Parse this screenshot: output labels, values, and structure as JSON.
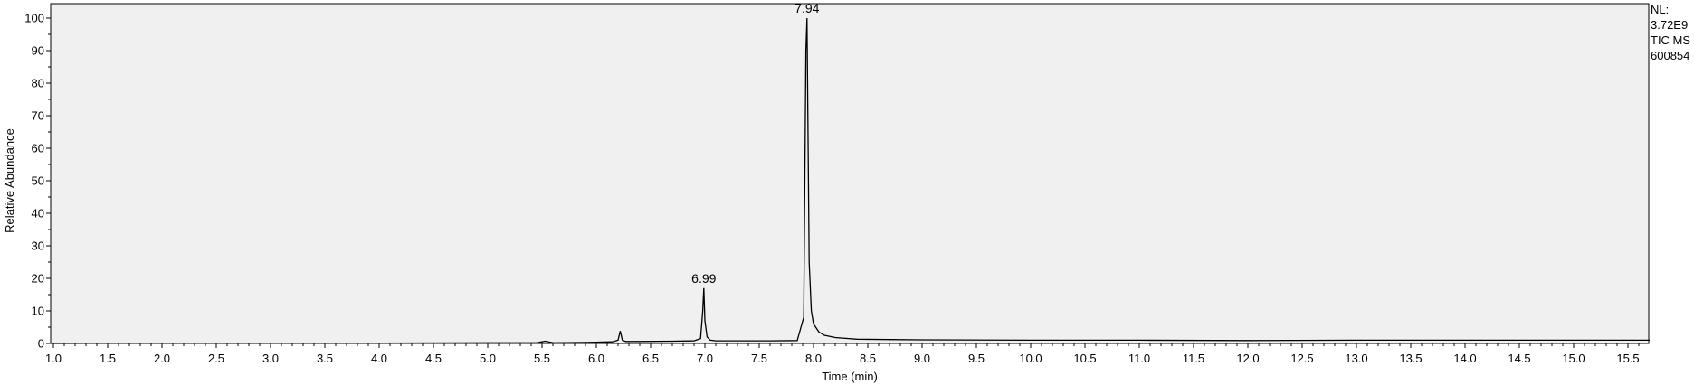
{
  "info": {
    "nl_label": "NL:",
    "nl_value": "3.72E9",
    "trace": "TIC  MS",
    "sample_id": "600854"
  },
  "chart_data": {
    "type": "line",
    "title": "",
    "xlabel": "Time (min)",
    "ylabel": "Relative Abundance",
    "xlim": [
      1.0,
      15.75
    ],
    "ylim": [
      0,
      100
    ],
    "x_ticks": [
      "1.0",
      "1.5",
      "2.0",
      "2.5",
      "3.0",
      "3.5",
      "4.0",
      "4.5",
      "5.0",
      "5.5",
      "6.0",
      "6.5",
      "7.0",
      "7.5",
      "8.0",
      "8.5",
      "9.0",
      "9.5",
      "10.0",
      "10.5",
      "11.0",
      "11.5",
      "12.0",
      "12.5",
      "13.0",
      "13.5",
      "14.0",
      "14.5",
      "15.0",
      "15.5"
    ],
    "y_ticks": [
      "0",
      "10",
      "20",
      "30",
      "40",
      "50",
      "60",
      "70",
      "80",
      "90",
      "100"
    ],
    "grid": false,
    "plot_background": "#f0f0f0",
    "line_color": "#000000",
    "peak_labels": [
      {
        "x": 6.99,
        "y": 17,
        "text": "6.99"
      },
      {
        "x": 7.94,
        "y": 100,
        "text": "7.94"
      }
    ],
    "series": [
      {
        "x": [
          1.0,
          2.0,
          3.0,
          4.0,
          5.0,
          5.45,
          5.5,
          5.53,
          5.56,
          5.6,
          5.9,
          6.15,
          6.2,
          6.22,
          6.24,
          6.27,
          6.4,
          6.7,
          6.9,
          6.96,
          6.98,
          6.99,
          7.0,
          7.02,
          7.05,
          7.1,
          7.3,
          7.6,
          7.85,
          7.91,
          7.93,
          7.94,
          7.95,
          7.96,
          7.98,
          8.0,
          8.05,
          8.1,
          8.2,
          8.4,
          8.7,
          9.0,
          10.0,
          11.0,
          12.0,
          13.0,
          14.0,
          15.0,
          15.7
        ],
        "y": [
          0.0,
          0.1,
          0.1,
          0.1,
          0.2,
          0.2,
          0.5,
          0.7,
          0.5,
          0.2,
          0.3,
          0.5,
          1.0,
          3.8,
          1.0,
          0.6,
          0.6,
          0.7,
          0.8,
          1.5,
          10.0,
          17.0,
          7.0,
          2.0,
          1.0,
          0.8,
          0.8,
          0.8,
          0.9,
          8.0,
          90.0,
          100.0,
          63.0,
          25.0,
          10.0,
          6.0,
          3.5,
          2.5,
          1.8,
          1.3,
          1.2,
          1.1,
          1.0,
          1.0,
          0.9,
          1.0,
          1.0,
          1.0,
          1.0
        ]
      }
    ]
  }
}
